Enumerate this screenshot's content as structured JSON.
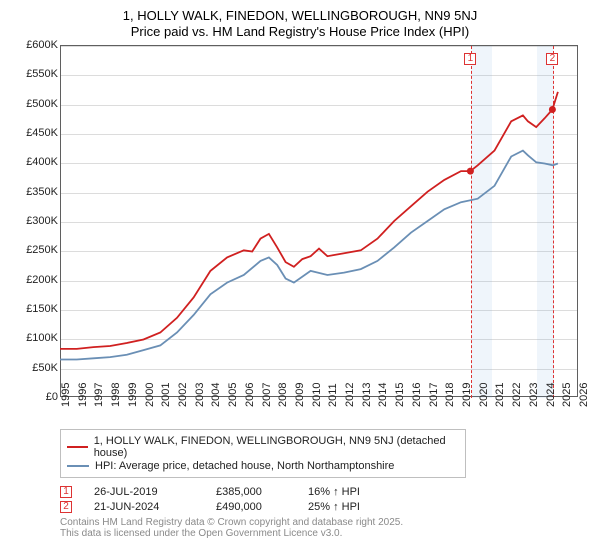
{
  "title_line1": "1, HOLLY WALK, FINEDON, WELLINGBOROUGH, NN9 5NJ",
  "title_line2": "Price paid vs. HM Land Registry's House Price Index (HPI)",
  "chart": {
    "type": "line",
    "xlim": [
      1995,
      2026
    ],
    "ylim": [
      0,
      600
    ],
    "ytick_step": 50,
    "yticks": [
      "£0",
      "£50K",
      "£100K",
      "£150K",
      "£200K",
      "£250K",
      "£300K",
      "£350K",
      "£400K",
      "£450K",
      "£500K",
      "£550K",
      "£600K"
    ],
    "xticks": [
      1995,
      1996,
      1997,
      1998,
      1999,
      2000,
      2001,
      2002,
      2003,
      2004,
      2005,
      2006,
      2007,
      2008,
      2009,
      2010,
      2011,
      2012,
      2013,
      2014,
      2015,
      2016,
      2017,
      2018,
      2019,
      2020,
      2021,
      2022,
      2023,
      2024,
      2025,
      2026
    ],
    "grid_color": "#dcdcdc",
    "border_color": "#5f5f5f",
    "background_color": "#ffffff",
    "recession_fill": "rgba(120,170,220,0.12)",
    "recession_bands": [
      [
        2019.56,
        2020.8
      ],
      [
        2023.5,
        2024.5
      ]
    ],
    "series": [
      {
        "name": "red",
        "color": "#d02020",
        "points": [
          [
            1995,
            82
          ],
          [
            1996,
            82
          ],
          [
            1997,
            85
          ],
          [
            1998,
            87
          ],
          [
            1999,
            92
          ],
          [
            2000,
            98
          ],
          [
            2001,
            110
          ],
          [
            2002,
            135
          ],
          [
            2003,
            170
          ],
          [
            2004,
            215
          ],
          [
            2005,
            238
          ],
          [
            2006,
            250
          ],
          [
            2006.5,
            248
          ],
          [
            2007,
            270
          ],
          [
            2007.5,
            278
          ],
          [
            2008,
            255
          ],
          [
            2008.5,
            230
          ],
          [
            2009,
            222
          ],
          [
            2009.5,
            235
          ],
          [
            2010,
            240
          ],
          [
            2010.5,
            253
          ],
          [
            2011,
            240
          ],
          [
            2012,
            245
          ],
          [
            2013,
            250
          ],
          [
            2014,
            270
          ],
          [
            2015,
            300
          ],
          [
            2016,
            325
          ],
          [
            2017,
            350
          ],
          [
            2018,
            370
          ],
          [
            2019,
            385
          ],
          [
            2019.56,
            385
          ],
          [
            2020,
            395
          ],
          [
            2021,
            420
          ],
          [
            2022,
            470
          ],
          [
            2022.7,
            480
          ],
          [
            2023,
            470
          ],
          [
            2023.5,
            460
          ],
          [
            2024,
            475
          ],
          [
            2024.47,
            490
          ],
          [
            2024.8,
            520
          ]
        ]
      },
      {
        "name": "blue",
        "color": "#6a8fb5",
        "points": [
          [
            1995,
            64
          ],
          [
            1996,
            64
          ],
          [
            1997,
            66
          ],
          [
            1998,
            68
          ],
          [
            1999,
            72
          ],
          [
            2000,
            80
          ],
          [
            2001,
            88
          ],
          [
            2002,
            110
          ],
          [
            2003,
            140
          ],
          [
            2004,
            175
          ],
          [
            2005,
            195
          ],
          [
            2006,
            208
          ],
          [
            2007,
            232
          ],
          [
            2007.5,
            238
          ],
          [
            2008,
            225
          ],
          [
            2008.5,
            202
          ],
          [
            2009,
            195
          ],
          [
            2010,
            215
          ],
          [
            2011,
            208
          ],
          [
            2012,
            212
          ],
          [
            2013,
            218
          ],
          [
            2014,
            232
          ],
          [
            2015,
            255
          ],
          [
            2016,
            280
          ],
          [
            2017,
            300
          ],
          [
            2018,
            320
          ],
          [
            2019,
            332
          ],
          [
            2020,
            338
          ],
          [
            2021,
            360
          ],
          [
            2022,
            410
          ],
          [
            2022.7,
            420
          ],
          [
            2023,
            412
          ],
          [
            2023.5,
            400
          ],
          [
            2024,
            398
          ],
          [
            2024.5,
            395
          ],
          [
            2024.8,
            398
          ]
        ]
      }
    ],
    "sale_lines": [
      2019.56,
      2024.47
    ],
    "sale_dots": [
      [
        2019.56,
        385
      ],
      [
        2024.47,
        490
      ]
    ],
    "sale_markers": [
      {
        "x": 2019.56,
        "y": 73,
        "label": "1"
      },
      {
        "x": 2024.47,
        "y": 73,
        "label": "2"
      }
    ]
  },
  "legend": {
    "items": [
      {
        "color": "#d02020",
        "label": "1, HOLLY WALK, FINEDON, WELLINGBOROUGH, NN9 5NJ (detached house)"
      },
      {
        "color": "#6a8fb5",
        "label": "HPI: Average price, detached house, North Northamptonshire"
      }
    ]
  },
  "sales_table": [
    {
      "n": "1",
      "date": "26-JUL-2019",
      "price": "£385,000",
      "hpi": "16% ↑ HPI"
    },
    {
      "n": "2",
      "date": "21-JUN-2024",
      "price": "£490,000",
      "hpi": "25% ↑ HPI"
    }
  ],
  "footer_line1": "Contains HM Land Registry data © Crown copyright and database right 2025.",
  "footer_line2": "This data is licensed under the Open Government Licence v3.0."
}
